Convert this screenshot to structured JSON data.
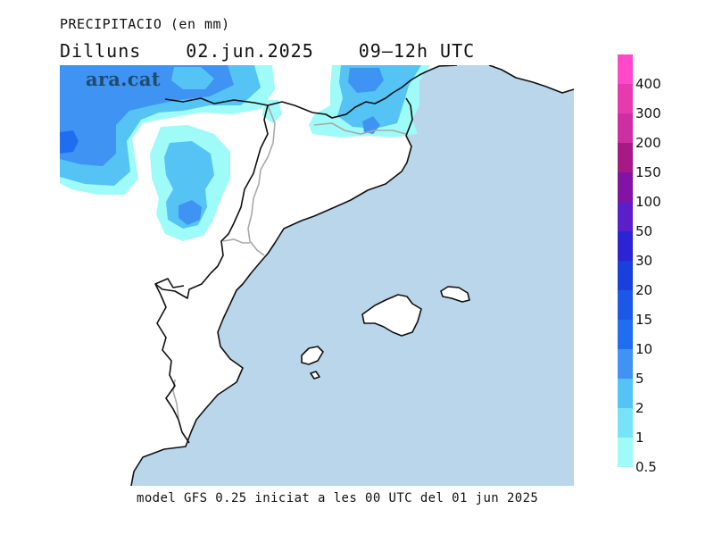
{
  "header": {
    "title": "PRECIPITACIO (en mm)",
    "day": "Dilluns",
    "date": "02.jun.2025",
    "period": "09–12h UTC"
  },
  "brand": "ara.cat",
  "footer": "model GFS 0.25 iniciat a les 00 UTC del 01 jun 2025",
  "legend": {
    "labels": [
      "400",
      "300",
      "200",
      "150",
      "100",
      "50",
      "30",
      "20",
      "15",
      "10",
      "5",
      "2",
      "1",
      "0.5"
    ],
    "colors": [
      "#ff49c8",
      "#e83aaf",
      "#cd2ea3",
      "#a61a86",
      "#8313a3",
      "#5b1ec8",
      "#2c24d2",
      "#1b3fdc",
      "#1c58e8",
      "#1f6ef0",
      "#3f93f3",
      "#55c3f4",
      "#76e4f6",
      "#9ffbf8"
    ]
  },
  "map": {
    "sea_color": "#bad6ea",
    "land_color": "#ffffff",
    "precip_colors": {
      "light": "#9ffbf8",
      "mid": "#55c3f4",
      "heavy": "#3f93f3",
      "core": "#1f6ef0"
    }
  }
}
